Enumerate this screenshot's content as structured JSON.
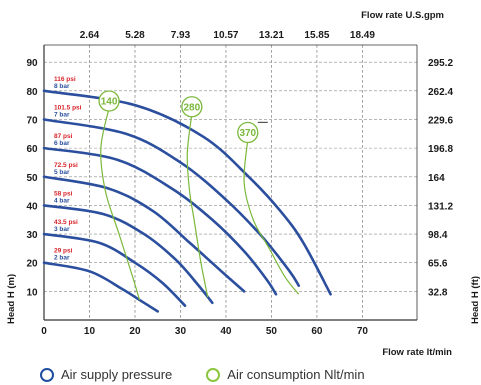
{
  "chart_data": {
    "type": "line",
    "top_axis_title": "Flow rate U.S.gpm",
    "top_ticks": [
      "2.64",
      "5.28",
      "7.93",
      "10.57",
      "13.21",
      "15.85",
      "18.49"
    ],
    "bottom_axis_title": "Flow rate  lt/min",
    "x_ticks": [
      "0",
      "10",
      "20",
      "30",
      "40",
      "50",
      "60",
      "70"
    ],
    "xlim": [
      0,
      82
    ],
    "left_axis_title": "Head H (m)",
    "left_ticks": [
      "10",
      "20",
      "30",
      "40",
      "50",
      "60",
      "70",
      "80",
      "90"
    ],
    "ylim": [
      0,
      96
    ],
    "right_axis_title": "Head H (ft)",
    "right_ticks": [
      "32.8",
      "65.6",
      "98.4",
      "131.2",
      "164",
      "196.8",
      "229.6",
      "262.4",
      "295.2"
    ],
    "grid": true,
    "series": [
      {
        "name": "116 psi",
        "bar": "8 bar",
        "points": [
          [
            0,
            80
          ],
          [
            20,
            75
          ],
          [
            35,
            64
          ],
          [
            45,
            50
          ],
          [
            52,
            38
          ],
          [
            57,
            27
          ],
          [
            63,
            9
          ]
        ]
      },
      {
        "name": "101.5 psi",
        "bar": "7 bar",
        "points": [
          [
            0,
            70
          ],
          [
            18,
            65
          ],
          [
            30,
            55
          ],
          [
            40,
            42
          ],
          [
            48,
            29
          ],
          [
            54,
            17
          ],
          [
            56,
            12
          ]
        ]
      },
      {
        "name": "87 psi",
        "bar": "6 bar",
        "points": [
          [
            0,
            60
          ],
          [
            16,
            56
          ],
          [
            28,
            46
          ],
          [
            37,
            35
          ],
          [
            44,
            24
          ],
          [
            49,
            14
          ],
          [
            51,
            9
          ]
        ]
      },
      {
        "name": "72.5 psi",
        "bar": "5 bar",
        "points": [
          [
            0,
            50
          ],
          [
            14,
            46
          ],
          [
            24,
            38
          ],
          [
            32,
            27
          ],
          [
            39,
            17
          ],
          [
            44,
            10
          ]
        ]
      },
      {
        "name": "58 psi",
        "bar": "4 bar",
        "points": [
          [
            0,
            40
          ],
          [
            13,
            37
          ],
          [
            22,
            30
          ],
          [
            29,
            21
          ],
          [
            34,
            12
          ],
          [
            37,
            6
          ]
        ]
      },
      {
        "name": "43.5 psi",
        "bar": "3 bar",
        "points": [
          [
            0,
            30
          ],
          [
            12,
            27
          ],
          [
            20,
            20
          ],
          [
            26,
            13
          ],
          [
            31,
            5
          ]
        ]
      },
      {
        "name": "29 psi",
        "bar": "2 bar",
        "points": [
          [
            0,
            20
          ],
          [
            10,
            17
          ],
          [
            17,
            11
          ],
          [
            21,
            7
          ],
          [
            25,
            3
          ]
        ]
      }
    ],
    "air_consumption": [
      {
        "label": "140",
        "points": [
          [
            14.3,
            74
          ],
          [
            12.5,
            60
          ],
          [
            13.5,
            45
          ],
          [
            16.5,
            30
          ],
          [
            19.5,
            15
          ],
          [
            21,
            7
          ]
        ]
      },
      {
        "label": "280",
        "points": [
          [
            32.5,
            72
          ],
          [
            31.5,
            58
          ],
          [
            32,
            45
          ],
          [
            33,
            35
          ],
          [
            34.5,
            20
          ],
          [
            36,
            8
          ]
        ]
      },
      {
        "label": "370",
        "points": [
          [
            44.8,
            63
          ],
          [
            44,
            48
          ],
          [
            46,
            35
          ],
          [
            49.5,
            25
          ],
          [
            53,
            15
          ],
          [
            56,
            9
          ]
        ]
      }
    ],
    "air_consumption_tick_y": 69
  },
  "legend": [
    {
      "label": "Air supply pressure",
      "color": "#1f4ea1"
    },
    {
      "label": "Air consumption Nlt/min",
      "color": "#8cc63f"
    }
  ],
  "colors": {
    "pressure": "#2b4f9e",
    "air": "#7ab83a",
    "grid": "#8a8a8a",
    "axis": "#333333"
  }
}
